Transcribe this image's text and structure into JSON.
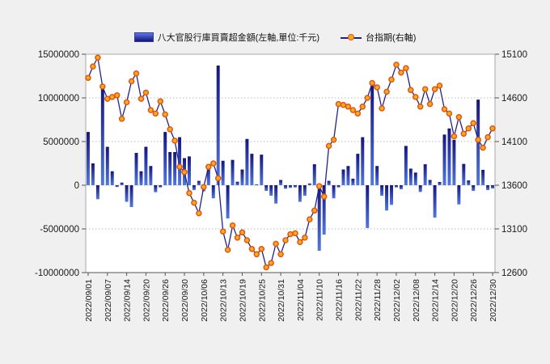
{
  "legend": {
    "bars_label": "八大官股行庫買賣超金額(左軸,單位:千元)",
    "line_label": "台指期(右軸)"
  },
  "colors": {
    "background": "#f0f0f0",
    "plot_background": "#ffffff",
    "plot_border": "#a8a8a8",
    "axis_line": "#555555",
    "gridline": "#bbbbbb",
    "bar_top": "#15157d",
    "bar_bottom": "#5078e0",
    "line": "#22228a",
    "marker_fill": "#ffaa1e",
    "marker_stroke": "#e05510",
    "text": "#1a1a1a"
  },
  "chart_data": {
    "type": "bar",
    "title": "",
    "xlabel": "",
    "ylabel": "",
    "grid": true,
    "legend_position": "top",
    "x_label_every": 4,
    "left_axis": {
      "min": -10000000,
      "max": 15000000,
      "ticks": [
        15000000,
        10000000,
        5000000,
        0,
        -5000000,
        -10000000
      ],
      "tick_labels": [
        "15000000",
        "10000000",
        "5000000",
        "0",
        "-5000000",
        "-10000000"
      ]
    },
    "right_axis": {
      "min": 12600,
      "max": 15100,
      "ticks": [
        15100,
        14600,
        14100,
        13600,
        13100,
        12600
      ],
      "tick_labels": [
        "15100",
        "14600",
        "14100",
        "13600",
        "13100",
        "12600"
      ]
    },
    "categories": [
      "2022/09/01",
      "2022/09/02",
      "2022/09/05",
      "2022/09/06",
      "2022/09/07",
      "2022/09/08",
      "2022/09/12",
      "2022/09/13",
      "2022/09/14",
      "2022/09/15",
      "2022/09/16",
      "2022/09/19",
      "2022/09/20",
      "2022/09/21",
      "2022/09/22",
      "2022/09/23",
      "2022/09/26",
      "2022/09/27",
      "2022/09/28",
      "2022/09/29",
      "2022/09/30",
      "2022/10/03",
      "2022/10/04",
      "2022/10/05",
      "2022/10/06",
      "2022/10/07",
      "2022/10/11",
      "2022/10/12",
      "2022/10/13",
      "2022/10/14",
      "2022/10/17",
      "2022/10/18",
      "2022/10/19",
      "2022/10/20",
      "2022/10/21",
      "2022/10/24",
      "2022/10/25",
      "2022/10/26",
      "2022/10/27",
      "2022/10/28",
      "2022/10/31",
      "2022/11/01",
      "2022/11/02",
      "2022/11/03",
      "2022/11/04",
      "2022/11/07",
      "2022/11/08",
      "2022/11/09",
      "2022/11/10",
      "2022/11/11",
      "2022/11/14",
      "2022/11/15",
      "2022/11/16",
      "2022/11/17",
      "2022/11/18",
      "2022/11/21",
      "2022/11/22",
      "2022/11/23",
      "2022/11/24",
      "2022/11/25",
      "2022/11/28",
      "2022/11/29",
      "2022/11/30",
      "2022/12/01",
      "2022/12/02",
      "2022/12/05",
      "2022/12/06",
      "2022/12/07",
      "2022/12/08",
      "2022/12/09",
      "2022/12/12",
      "2022/12/13",
      "2022/12/14",
      "2022/12/15",
      "2022/12/16",
      "2022/12/19",
      "2022/12/20",
      "2022/12/21",
      "2022/12/22",
      "2022/12/23",
      "2022/12/26",
      "2022/12/27",
      "2022/12/28",
      "2022/12/29",
      "2022/12/30"
    ],
    "series": [
      {
        "name": "八大官股行庫買賣超金額(左軸,單位:千元)",
        "type": "bar",
        "axis": "left",
        "values": [
          6100000,
          2500000,
          -1600000,
          11300000,
          4400000,
          1600000,
          -200000,
          300000,
          -1900000,
          -2500000,
          3700000,
          1600000,
          4400000,
          2200000,
          -800000,
          -250000,
          6100000,
          3800000,
          3800000,
          5500000,
          3100000,
          3300000,
          -550000,
          500000,
          -700000,
          2400000,
          -1500000,
          13700000,
          2800000,
          -3800000,
          2900000,
          400000,
          1800000,
          5300000,
          3600000,
          100000,
          3500000,
          -650000,
          -1200000,
          -2100000,
          600000,
          -400000,
          -300000,
          -250000,
          -1900000,
          -1200000,
          200000,
          2400000,
          -7500000,
          -5650000,
          500000,
          -1500000,
          -250000,
          1800000,
          2200000,
          750000,
          3600000,
          5500000,
          -4900000,
          11500000,
          2200000,
          -1200000,
          -2900000,
          -2250000,
          -250000,
          -460000,
          4500000,
          1900000,
          1450000,
          -770000,
          2400000,
          600000,
          -3700000,
          370000,
          5800000,
          6500000,
          5200000,
          -2200000,
          2440000,
          550000,
          -650000,
          9800000,
          1760000,
          -550000,
          -370000
        ]
      },
      {
        "name": "台指期(右軸)",
        "type": "line",
        "axis": "right",
        "values": [
          14830,
          14960,
          15060,
          14730,
          14590,
          14610,
          14630,
          14360,
          14550,
          14790,
          14880,
          14590,
          14660,
          14460,
          14420,
          14560,
          14410,
          14240,
          14110,
          13810,
          13750,
          13510,
          13400,
          13280,
          13580,
          13810,
          13850,
          13680,
          13070,
          12860,
          13140,
          13000,
          13060,
          12970,
          12870,
          12810,
          12870,
          12660,
          12710,
          12930,
          12810,
          12970,
          13040,
          13050,
          12950,
          13000,
          13210,
          13310,
          13590,
          13470,
          14050,
          14120,
          14530,
          14520,
          14500,
          14460,
          14420,
          14500,
          14600,
          14770,
          14720,
          14480,
          14670,
          14810,
          14980,
          14890,
          14940,
          14690,
          14610,
          14500,
          14700,
          14530,
          14700,
          14740,
          14470,
          14420,
          14160,
          14380,
          14190,
          14250,
          14310,
          14120,
          14030,
          14150,
          14250
        ]
      }
    ]
  }
}
